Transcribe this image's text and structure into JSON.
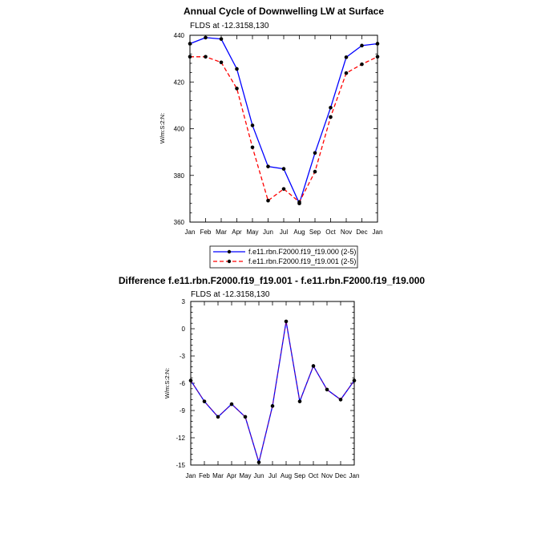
{
  "chart_data": [
    {
      "type": "line",
      "title": "Annual Cycle of Downwelling LW at Surface",
      "subtitle": "FLDS at -12.3158,130",
      "ylabel": "W/m:S:2:N:",
      "xlabel": "",
      "categories": [
        "Jan",
        "Feb",
        "Mar",
        "Apr",
        "May",
        "Jun",
        "Jul",
        "Aug",
        "Sep",
        "Oct",
        "Nov",
        "Dec",
        "Jan"
      ],
      "ylim": [
        360,
        440
      ],
      "yticks": [
        360,
        380,
        400,
        420,
        440
      ],
      "series": [
        {
          "name": "f.e11.rbn.F2000.f19_f19.000 (2-5)",
          "color": "#0000ff",
          "dash": "solid",
          "values": [
            436.4,
            439.0,
            438.4,
            425.6,
            401.4,
            383.8,
            382.8,
            368.0,
            389.6,
            409.0,
            430.6,
            435.6,
            436.4
          ]
        },
        {
          "name": "f.e11.rbn.F2000.f19_f19.001 (2-5)",
          "color": "#ff0000",
          "dash": "dashed",
          "values": [
            430.8,
            430.8,
            428.4,
            417.2,
            392.0,
            369.2,
            374.2,
            368.6,
            381.6,
            405.0,
            423.8,
            427.6,
            430.8
          ]
        }
      ],
      "legend": "below",
      "grid": false
    },
    {
      "type": "line",
      "title": "Difference f.e11.rbn.F2000.f19_f19.001 - f.e11.rbn.F2000.f19_f19.000",
      "subtitle": "FLDS at -12.3158,130",
      "ylabel": "W/m:S:2:N:",
      "xlabel": "",
      "categories": [
        "Jan",
        "Feb",
        "Mar",
        "Apr",
        "May",
        "Jun",
        "Jul",
        "Aug",
        "Sep",
        "Oct",
        "Nov",
        "Dec",
        "Jan"
      ],
      "ylim": [
        -15,
        3
      ],
      "yticks": [
        -15,
        -12,
        -9,
        -6,
        -3,
        0,
        3
      ],
      "series": [
        {
          "name": "",
          "color": "#0000ff",
          "overlay_color": "#ff0000",
          "dash": "solid",
          "values": [
            -5.7,
            -8.0,
            -9.7,
            -8.3,
            -9.7,
            -14.7,
            -8.5,
            0.8,
            -8.0,
            -4.1,
            -6.7,
            -7.8,
            -5.7
          ]
        }
      ],
      "legend": "none",
      "grid": false
    }
  ]
}
